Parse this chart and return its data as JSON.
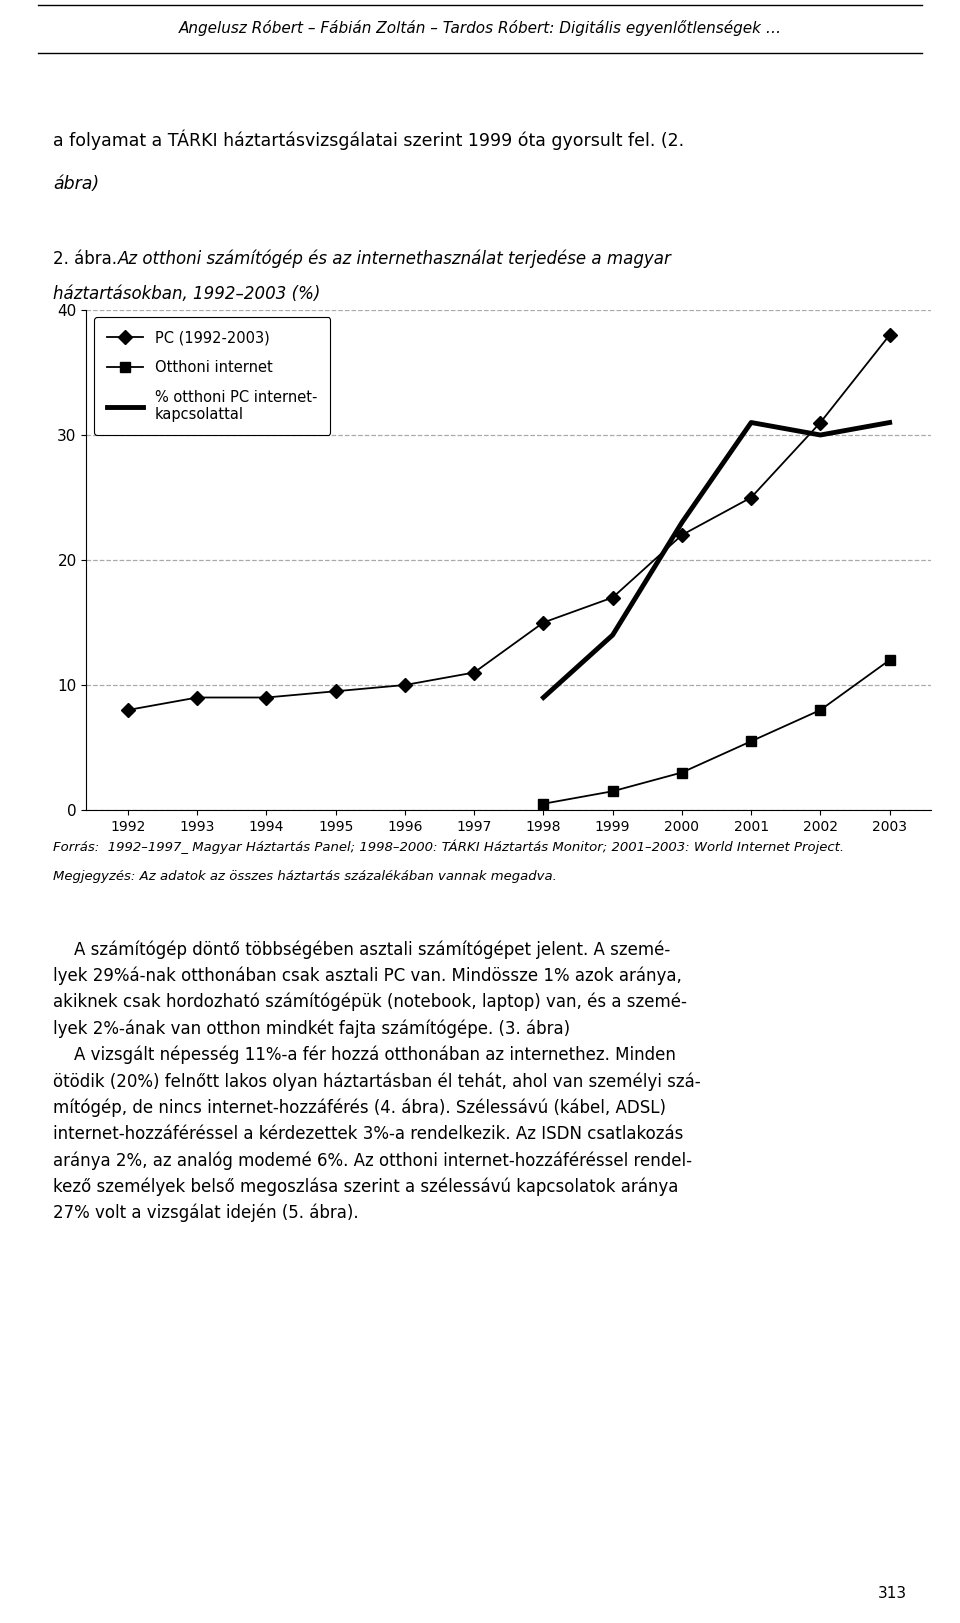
{
  "years": [
    1992,
    1993,
    1994,
    1995,
    1996,
    1997,
    1998,
    1999,
    2000,
    2001,
    2002,
    2003
  ],
  "pc": [
    8.0,
    9.0,
    9.0,
    9.5,
    10.0,
    11.0,
    15.0,
    17.0,
    22.0,
    25.0,
    31.0,
    38.0
  ],
  "internet": [
    null,
    null,
    null,
    null,
    null,
    null,
    0.5,
    1.5,
    3.0,
    5.5,
    8.0,
    12.0
  ],
  "pc_with_internet": [
    null,
    null,
    null,
    null,
    null,
    null,
    9.0,
    14.0,
    23.0,
    31.0,
    30.0,
    31.0
  ],
  "legend_pc": "PC (1992-2003)",
  "legend_internet": "Otthoni internet",
  "legend_pct": "% otthoni PC internet-\nkapcsolattal",
  "ylim": [
    0,
    40
  ],
  "yticks": [
    0,
    10,
    20,
    30,
    40
  ],
  "bg_color": "#ffffff",
  "grid_color": "#aaaaaa",
  "page_number": "313",
  "header_text": "Angelusz Róbert – Fábián Zoltán – Tardos Róbert: Digitális egyenlőtlenségek …",
  "source_line1": "Forrás:  1992–1997_ Magyar Háztartás Panel; 1998–2000: TÁRKI Háztartás Monitor; 2001–2003: World Internet Project.",
  "source_line2": "Megjegyzés: Az adatok az összes háztartás százalékában vannak megadva."
}
